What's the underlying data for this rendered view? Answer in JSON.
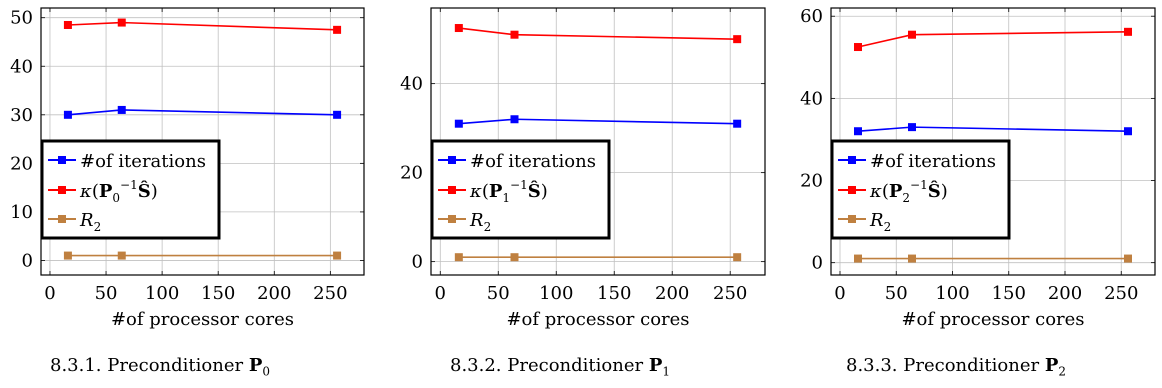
{
  "colors": {
    "iterations": "#0000ff",
    "kappa": "#ff0000",
    "r2": "#bf8040",
    "grid": "#c0c0c0"
  },
  "chart_data": [
    {
      "type": "line",
      "xlabel": "#of processor cores",
      "xlim": [
        -8,
        280
      ],
      "ylim": [
        -3,
        52
      ],
      "xticks": [
        0,
        50,
        100,
        150,
        200,
        250
      ],
      "yticks": [
        0,
        10,
        20,
        30,
        40,
        50
      ],
      "grid": true,
      "legend_position": "left-middle",
      "series": [
        {
          "name": "#of iterations",
          "color": "#0000ff",
          "x": [
            16,
            64,
            256
          ],
          "y": [
            30,
            31,
            30
          ]
        },
        {
          "name": "κ(P0⁻¹Ŝ)",
          "color": "#ff0000",
          "x": [
            16,
            64,
            256
          ],
          "y": [
            48.5,
            49,
            47.5
          ]
        },
        {
          "name": "R2",
          "color": "#bf8040",
          "x": [
            16,
            64,
            256
          ],
          "y": [
            1,
            1,
            1
          ]
        }
      ]
    },
    {
      "type": "line",
      "xlabel": "#of processor cores",
      "xlim": [
        -8,
        280
      ],
      "ylim": [
        -3,
        57
      ],
      "xticks": [
        0,
        50,
        100,
        150,
        200,
        250
      ],
      "yticks": [
        0,
        20,
        40
      ],
      "grid": true,
      "legend_position": "left-middle",
      "series": [
        {
          "name": "#of iterations",
          "color": "#0000ff",
          "x": [
            16,
            64,
            256
          ],
          "y": [
            31,
            32,
            31
          ]
        },
        {
          "name": "κ(P1⁻¹Ŝ)",
          "color": "#ff0000",
          "x": [
            16,
            64,
            256
          ],
          "y": [
            52.5,
            51,
            50
          ]
        },
        {
          "name": "R2",
          "color": "#bf8040",
          "x": [
            16,
            64,
            256
          ],
          "y": [
            1,
            1,
            1
          ]
        }
      ]
    },
    {
      "type": "line",
      "xlabel": "#of processor cores",
      "xlim": [
        -8,
        280
      ],
      "ylim": [
        -3,
        62
      ],
      "xticks": [
        0,
        50,
        100,
        150,
        200,
        250
      ],
      "yticks": [
        0,
        20,
        40,
        60
      ],
      "grid": true,
      "legend_position": "left-middle",
      "series": [
        {
          "name": "#of iterations",
          "color": "#0000ff",
          "x": [
            16,
            64,
            256
          ],
          "y": [
            32,
            33,
            32
          ]
        },
        {
          "name": "κ(P2⁻¹Ŝ)",
          "color": "#ff0000",
          "x": [
            16,
            64,
            256
          ],
          "y": [
            52.5,
            55.5,
            56.2
          ]
        },
        {
          "name": "R2",
          "color": "#bf8040",
          "x": [
            16,
            64,
            256
          ],
          "y": [
            1,
            1,
            1
          ]
        }
      ]
    }
  ],
  "captions": [
    {
      "number": "8.3.1.",
      "text": "Preconditioner",
      "symbol": "P",
      "sub": "0"
    },
    {
      "number": "8.3.2.",
      "text": "Preconditioner",
      "symbol": "P",
      "sub": "1"
    },
    {
      "number": "8.3.3.",
      "text": "Preconditioner",
      "symbol": "P",
      "sub": "2"
    }
  ]
}
